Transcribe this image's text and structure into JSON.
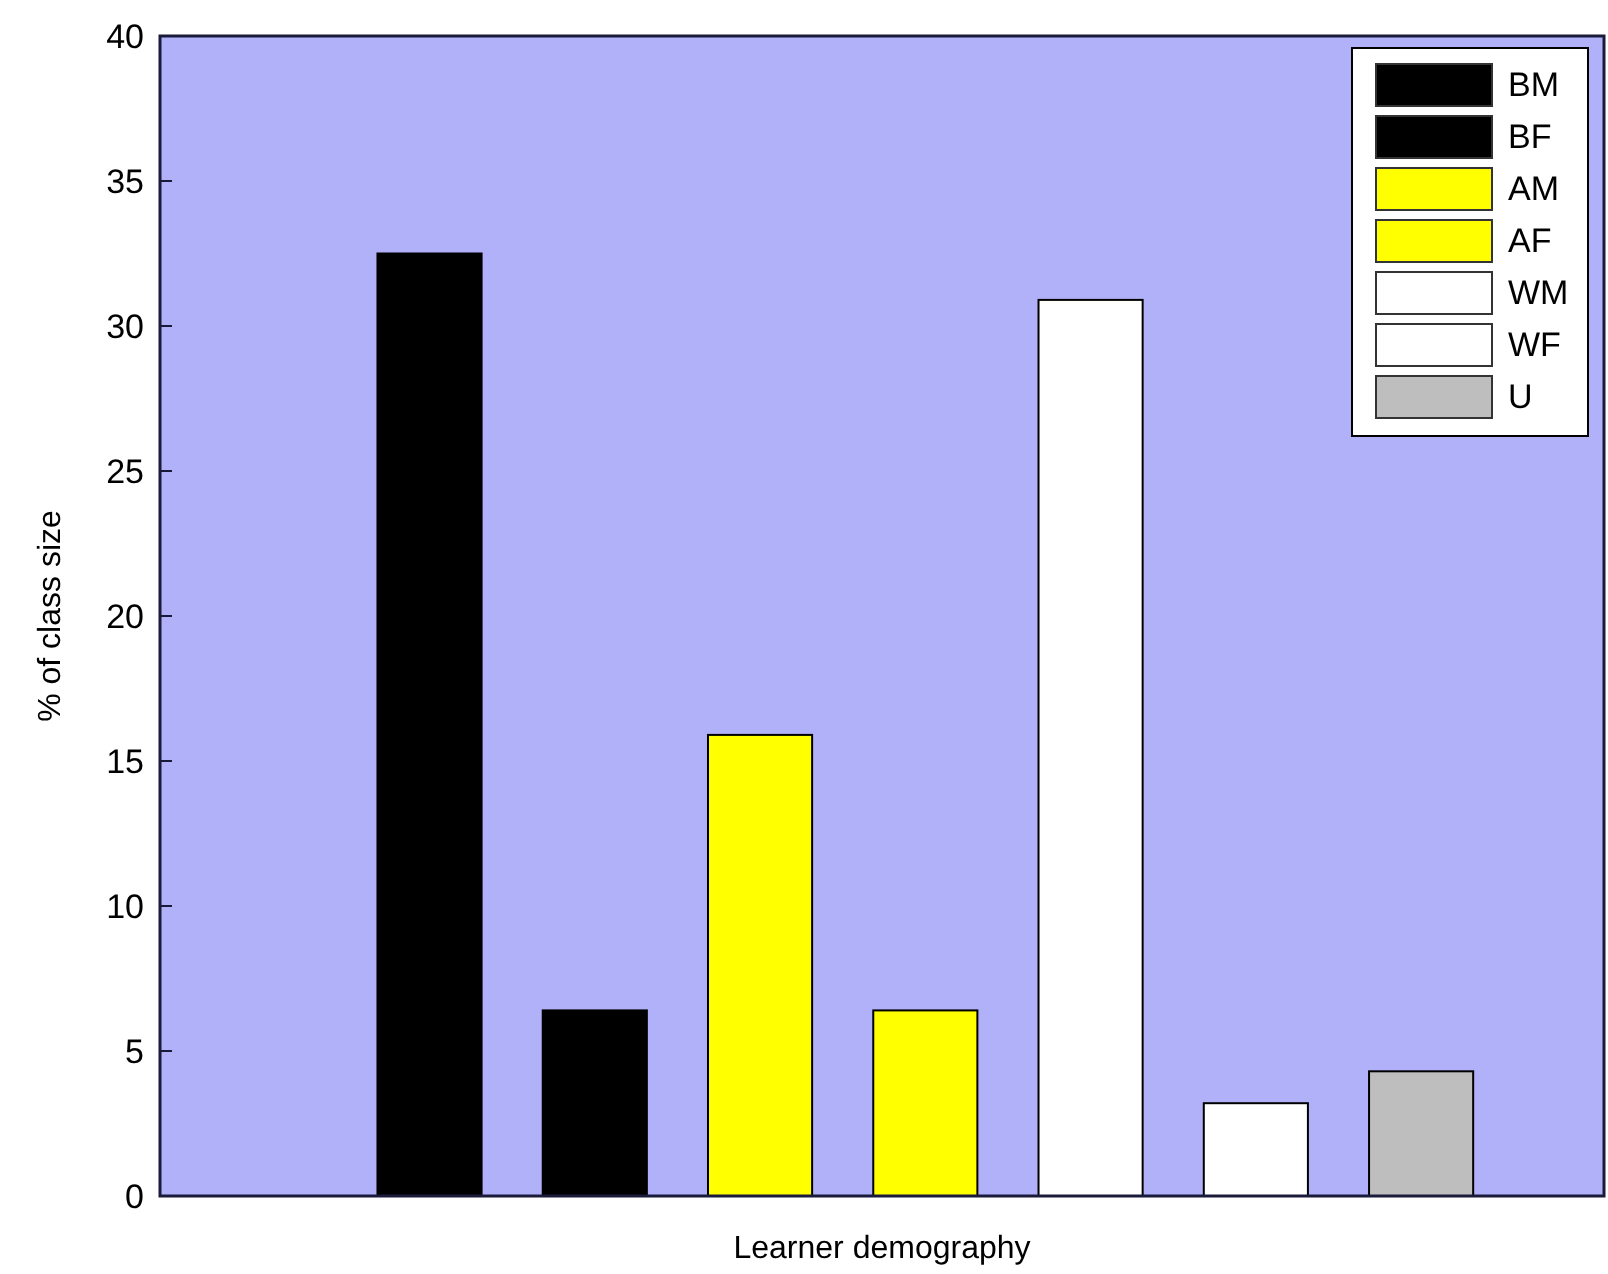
{
  "chart_data": {
    "type": "bar",
    "stacked": true,
    "xlabel": "Learner demography",
    "ylabel": "% of class size",
    "categories": [
      null,
      null,
      null,
      null,
      null,
      null,
      null
    ],
    "series": [
      {
        "name": "BM",
        "color": "#000000",
        "values": [
          32.5,
          null,
          null,
          null,
          null,
          null,
          null
        ]
      },
      {
        "name": "BF",
        "color": "#000000",
        "values": [
          null,
          6.4,
          null,
          null,
          null,
          null,
          null
        ]
      },
      {
        "name": "AM",
        "color": "#ffff00",
        "values": [
          null,
          null,
          15.9,
          null,
          null,
          null,
          null
        ]
      },
      {
        "name": "AF",
        "color": "#ffff00",
        "values": [
          null,
          null,
          null,
          6.4,
          null,
          null,
          null
        ]
      },
      {
        "name": "WM",
        "color": "#ffffff",
        "values": [
          null,
          null,
          null,
          null,
          30.9,
          null,
          null
        ]
      },
      {
        "name": "WF",
        "color": "#ffffff",
        "values": [
          null,
          null,
          null,
          null,
          null,
          3.2,
          null
        ]
      },
      {
        "name": "U",
        "color": "#bebebe",
        "values": [
          null,
          null,
          null,
          null,
          null,
          null,
          4.3
        ]
      }
    ],
    "ylim": [
      0,
      40
    ],
    "yticks": [
      0,
      5,
      10,
      15,
      20,
      25,
      30,
      35,
      40
    ],
    "grid": false,
    "legend": "top right"
  }
}
